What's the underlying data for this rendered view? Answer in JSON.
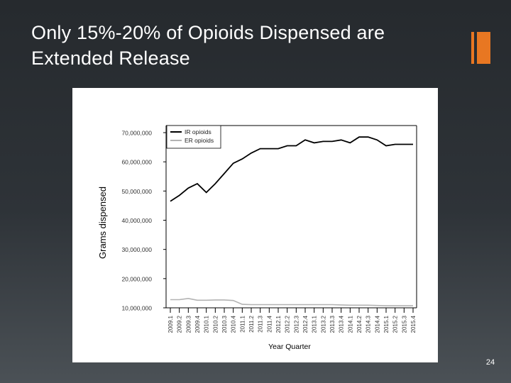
{
  "slide": {
    "title": "Only 15%-20% of Opioids Dispensed are Extended Release",
    "page_number": "24",
    "accent_color": "#e87722"
  },
  "chart_data": {
    "type": "line",
    "title": "",
    "xlabel": "Year Quarter",
    "ylabel": "Grams dispensed",
    "ylim": [
      10000000,
      70000000
    ],
    "yticks": [
      "70,000,000",
      "60,000,000",
      "50,000,000",
      "40,000,000",
      "30,000,000",
      "20,000,000",
      "10,000,000"
    ],
    "ytick_values": [
      70000000,
      60000000,
      50000000,
      40000000,
      30000000,
      20000000,
      10000000
    ],
    "categories": [
      "2009.1",
      "2009.2",
      "2009.3",
      "2009.4",
      "2010.1",
      "2010.2",
      "2010.3",
      "2010.4",
      "2011.1",
      "2011.2",
      "2011.3",
      "2011.4",
      "2012.1",
      "2012.2",
      "2012.3",
      "2012.4",
      "2013.1",
      "2013.2",
      "2013.3",
      "2013.4",
      "2014.1",
      "2014.2",
      "2014.3",
      "2014.4",
      "2015.1",
      "2015.2",
      "2015.3",
      "2015.4"
    ],
    "tick_labels": [
      "2009.1",
      "2009.2",
      "2009.3",
      "2009.4",
      "2010.1",
      "2010.2",
      "2010.3",
      "2010.4",
      "2011.1",
      "2011.2",
      "2011.3",
      "2011.4",
      "2012.1",
      "2012.2",
      "2012.3",
      "2012.4",
      "2013.1",
      "2013.2",
      "2013.3",
      "2013.4",
      "2014.1",
      "2014.2",
      "2014.3",
      "2014.4",
      "2015.1",
      "2015.2",
      "2015.3",
      "2015.4"
    ],
    "legend_position": "top-left",
    "grid": false,
    "series": [
      {
        "name": "IR opioids",
        "color": "#000000",
        "values": [
          46500000,
          48500000,
          51000000,
          52500000,
          49500000,
          52500000,
          56000000,
          59500000,
          61000000,
          63000000,
          64500000,
          64500000,
          64500000,
          65500000,
          65500000,
          67500000,
          66500000,
          67000000,
          67000000,
          67500000,
          66500000,
          68500000,
          68500000,
          67500000,
          65500000,
          66000000,
          66000000,
          66000000
        ]
      },
      {
        "name": "ER opioids",
        "color": "#b3b3b3",
        "values": [
          12800000,
          12800000,
          13200000,
          12600000,
          12600000,
          12700000,
          12700000,
          12500000,
          11200000,
          11100000,
          11100000,
          11100000,
          11100000,
          11100000,
          11100000,
          11100000,
          11100000,
          11100000,
          11100000,
          11000000,
          10900000,
          10900000,
          10900000,
          10800000,
          10700000,
          10700000,
          10700000,
          10700000
        ]
      }
    ]
  }
}
